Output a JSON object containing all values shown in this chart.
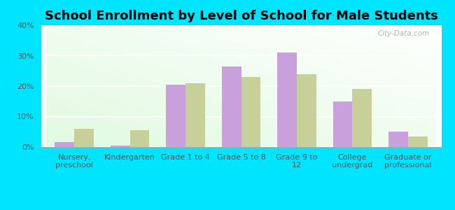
{
  "title": "School Enrollment by Level of School for Male Students",
  "categories": [
    "Nursery,\npreschool",
    "Kindergarten",
    "Grade 1 to 4",
    "Grade 5 to 8",
    "Grade 9 to\n12",
    "College\nundergrad",
    "Graduate or\nprofessional"
  ],
  "bellevue": [
    1.5,
    0.5,
    20.5,
    26.5,
    31.0,
    15.0,
    5.0
  ],
  "wisconsin": [
    6.0,
    5.5,
    21.0,
    23.0,
    24.0,
    19.0,
    3.5
  ],
  "bellevue_color": "#c9a0dc",
  "wisconsin_color": "#c8d09a",
  "ylim": [
    0,
    40
  ],
  "yticks": [
    0,
    10,
    20,
    30,
    40
  ],
  "yticklabels": [
    "0%",
    "10%",
    "20%",
    "30%",
    "40%"
  ],
  "background_color": "#00e5ff",
  "title_fontsize": 13,
  "tick_fontsize": 8,
  "legend_fontsize": 10,
  "bar_width": 0.35,
  "watermark": "City-Data.com",
  "grid_color": "#cccccc",
  "plot_bg_top": "#e8f5e8",
  "plot_bg_bottom": "#f8fff8"
}
